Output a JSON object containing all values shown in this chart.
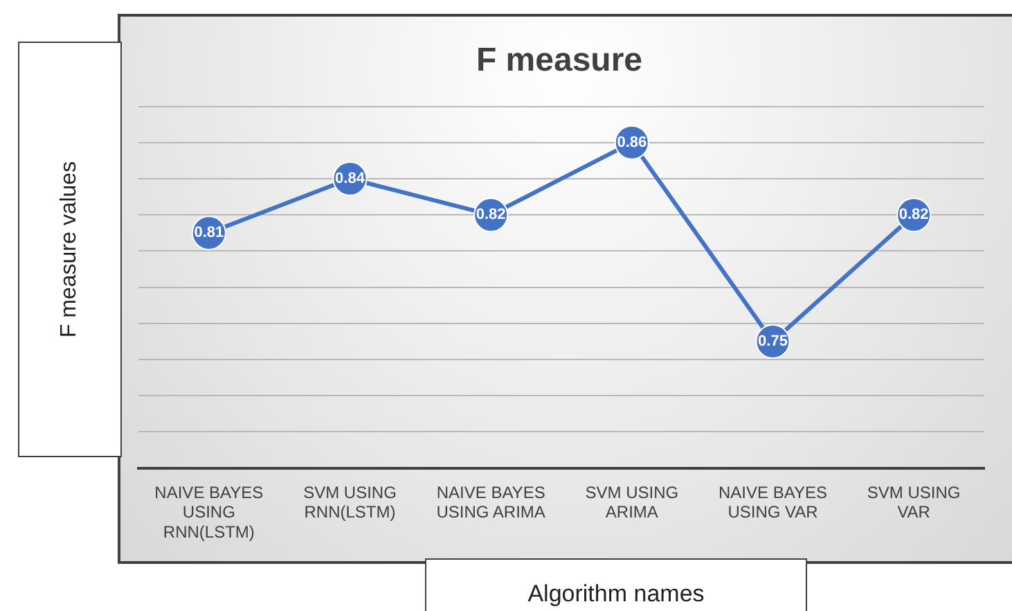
{
  "chart_data": {
    "type": "line",
    "title": "F measure",
    "xlabel": "Algorithm names",
    "ylabel": "F measure values",
    "categories": [
      "NAIVE BAYES USING RNN(LSTM)",
      "SVM USING RNN(LSTM)",
      "NAIVE BAYES USING ARIMA",
      "SVM USING ARIMA",
      "NAIVE BAYES USING VAR",
      "SVM USING VAR"
    ],
    "series": [
      {
        "color": "#4472c4",
        "values": [
          0.81,
          0.84,
          0.82,
          0.86,
          0.75,
          0.82
        ]
      }
    ],
    "ylim": [
      0.68,
      0.88
    ],
    "yticks": [
      {
        "value": 0.68,
        "label": null
      },
      {
        "value": 0.7,
        "label": null
      },
      {
        "value": 0.72,
        "label": null
      },
      {
        "value": 0.74,
        "label": null
      },
      {
        "value": 0.76,
        "label": null
      },
      {
        "value": 0.78,
        "label": null
      },
      {
        "value": 0.8,
        "label": null
      },
      {
        "value": 0.82,
        "label": null
      },
      {
        "value": 0.84,
        "label": null
      },
      {
        "value": 0.86,
        "label": null
      },
      {
        "value": 0.88,
        "label": null
      }
    ],
    "grid": "y",
    "tick_labels": "x",
    "marker": "circle",
    "line_style": "solid",
    "data_labels": true,
    "legend": false
  }
}
